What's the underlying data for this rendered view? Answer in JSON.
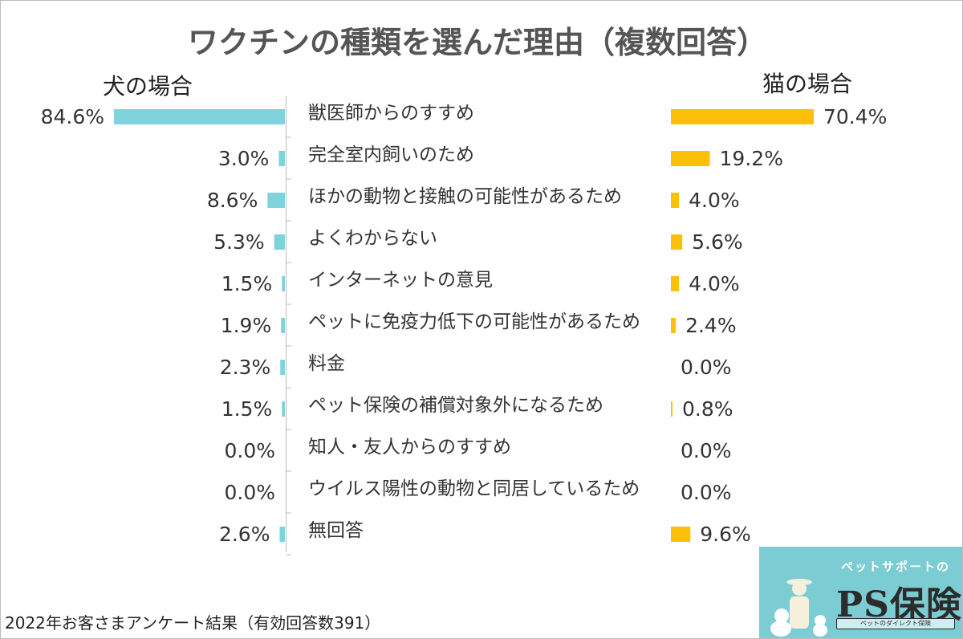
{
  "chart_data": {
    "type": "bar",
    "title": "ワクチンの種類を選んだ理由（複数回答）",
    "categories": [
      "獣医師からのすすめ",
      "完全室内飼いのため",
      "ほかの動物と接触の可能性があるため",
      "よくわからない",
      "インターネットの意見",
      "ペットに免疫力低下の可能性があるため",
      "料金",
      "ペット保険の補償対象外になるため",
      "知人・友人からのすすめ",
      "ウイルス陽性の動物と同居しているため",
      "無回答"
    ],
    "series": [
      {
        "name": "犬の場合",
        "color": "#7fd3dc",
        "values": [
          84.6,
          3.0,
          8.6,
          5.3,
          1.5,
          1.9,
          2.3,
          1.5,
          0.0,
          0.0,
          2.6
        ],
        "labels": [
          "84.6%",
          "3.0%",
          "8.6%",
          "5.3%",
          "1.5%",
          "1.9%",
          "2.3%",
          "1.5%",
          "0.0%",
          "0.0%",
          "2.6%"
        ]
      },
      {
        "name": "猫の場合",
        "color": "#fcbf0a",
        "values": [
          70.4,
          19.2,
          4.0,
          5.6,
          4.0,
          2.4,
          0.0,
          0.8,
          0.0,
          0.0,
          9.6
        ],
        "labels": [
          "70.4%",
          "19.2%",
          "4.0%",
          "5.6%",
          "4.0%",
          "2.4%",
          "0.0%",
          "0.8%",
          "0.0%",
          "0.0%",
          "9.6%"
        ]
      }
    ],
    "unit": "%",
    "legend": "top"
  },
  "footer": "2022年お客さまアンケート結果（有効回答数391）",
  "logo": {
    "tagline": "ペットサポートの",
    "brand": "PS保険",
    "sub": "ペットのダイレクト保険"
  }
}
